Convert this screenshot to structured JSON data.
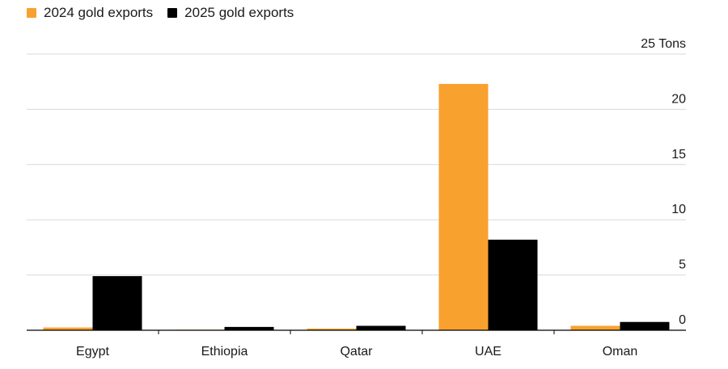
{
  "chart_data": {
    "type": "bar",
    "categories": [
      "Egypt",
      "Ethiopia",
      "Qatar",
      "UAE",
      "Oman"
    ],
    "series": [
      {
        "name": "2024 gold exports",
        "color": "#f9a12e",
        "values": [
          0.25,
          0.05,
          0.15,
          22.3,
          0.4
        ]
      },
      {
        "name": "2025 gold exports",
        "color": "#000000",
        "values": [
          4.9,
          0.3,
          0.4,
          8.2,
          0.75
        ]
      }
    ],
    "ylim": [
      0,
      25
    ],
    "yticks": [
      {
        "value": 0,
        "label": "0"
      },
      {
        "value": 5,
        "label": "5"
      },
      {
        "value": 10,
        "label": "10"
      },
      {
        "value": 15,
        "label": "15"
      },
      {
        "value": 20,
        "label": "20"
      },
      {
        "value": 25,
        "label": "25 Tons"
      }
    ],
    "ylabel": "",
    "xlabel": "",
    "title": "",
    "grid": true,
    "legend_position": "top-left"
  }
}
